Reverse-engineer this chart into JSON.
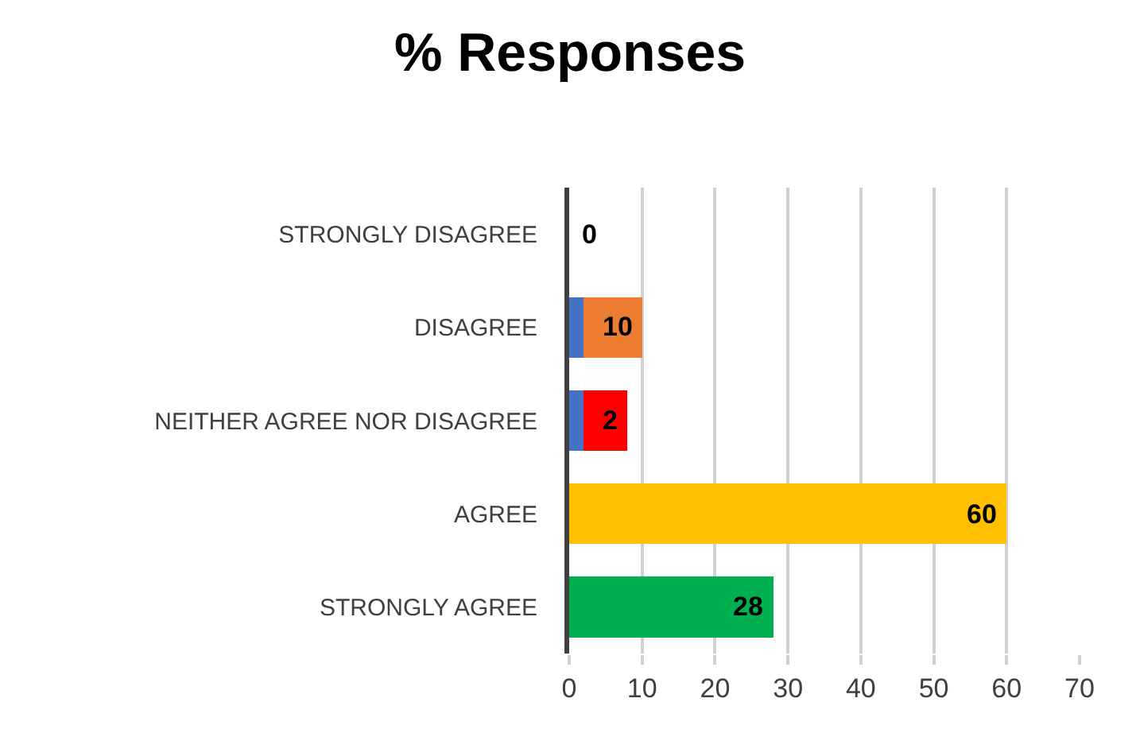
{
  "chart_data": {
    "type": "bar",
    "title": "% Responses",
    "orientation": "horizontal",
    "stacked": true,
    "categories": [
      "STRONGLY DISAGREE",
      "DISAGREE",
      "NEITHER AGREE NOR DISAGREE",
      "AGREE",
      "STRONGLY AGREE"
    ],
    "series": [
      {
        "color": "#4472c4",
        "values": [
          0,
          2,
          2,
          0,
          0
        ],
        "value_labels": [
          null,
          null,
          "2",
          null,
          null
        ]
      },
      {
        "colors": [
          "#ed7d31",
          "#ed7d31",
          "#ff0000",
          "#ffc000",
          "#00b050"
        ],
        "values": [
          0,
          8,
          6,
          60,
          28
        ]
      }
    ],
    "totals": [
      "0",
      "10",
      null,
      "60",
      "28"
    ],
    "xlim": [
      0,
      70
    ],
    "xticks": [
      0,
      10,
      20,
      30,
      40,
      50,
      60,
      70
    ],
    "grid": "x"
  }
}
